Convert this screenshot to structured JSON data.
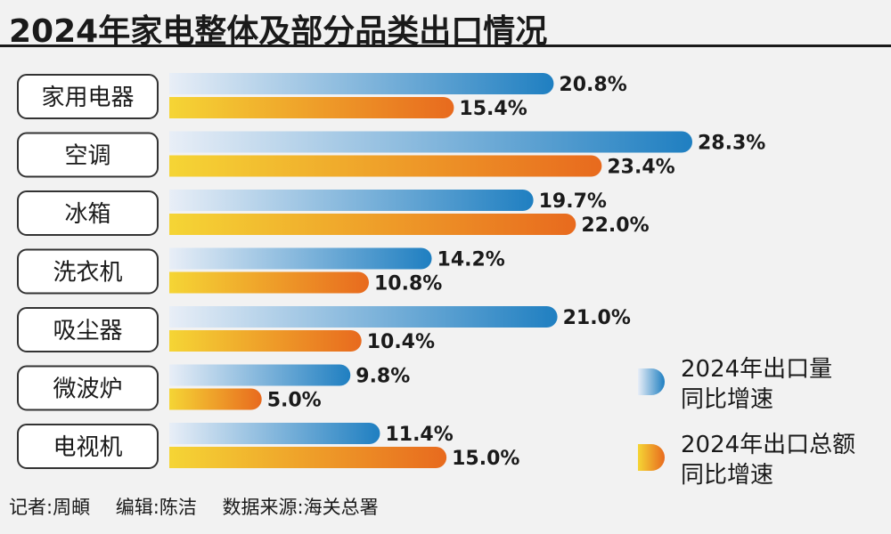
{
  "title": "2024年家电整体及部分品类出口情况",
  "credits": {
    "reporter": "记者:周頔",
    "editor": "编辑:陈洁",
    "source": "数据来源:海关总署"
  },
  "legend": [
    {
      "line1": "2024年出口量",
      "line2": "同比增速"
    },
    {
      "line1": "2024年出口总额",
      "line2": "同比增速"
    }
  ],
  "colors": {
    "volume_start": "#e8eef7",
    "volume_end": "#1f7fc1",
    "value_start": "#f5d535",
    "value_end": "#e86a1e"
  },
  "chart_data": {
    "type": "bar",
    "orientation": "horizontal",
    "title": "2024年家电整体及部分品类出口情况",
    "unit": "%",
    "categories": [
      "家用电器",
      "空调",
      "冰箱",
      "洗衣机",
      "吸尘器",
      "微波炉",
      "电视机"
    ],
    "series": [
      {
        "name": "2024年出口量同比增速",
        "values": [
          20.8,
          28.3,
          19.7,
          14.2,
          21.0,
          9.8,
          11.4
        ],
        "labels": [
          "20.8%",
          "28.3%",
          "19.7%",
          "14.2%",
          "21.0%",
          "9.8%",
          "11.4%"
        ]
      },
      {
        "name": "2024年出口总额同比增速",
        "values": [
          15.4,
          23.4,
          22.0,
          10.8,
          10.4,
          5.0,
          15.0
        ],
        "labels": [
          "15.4%",
          "23.4%",
          "22.0%",
          "10.8%",
          "10.4%",
          "5.0%",
          "15.0%"
        ]
      }
    ],
    "xlim": [
      0,
      28.3
    ],
    "legend_position": "bottom-right"
  }
}
